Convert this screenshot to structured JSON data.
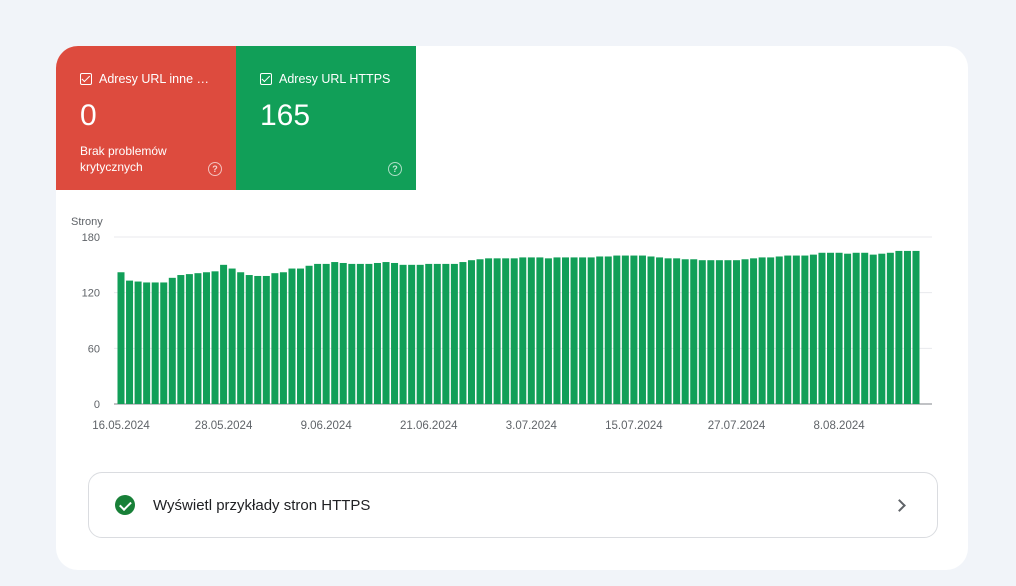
{
  "tiles": [
    {
      "label": "Adresy URL inne …",
      "value": "0",
      "subtitle": "Brak problemów krytycznych",
      "color": "#dd4b3e",
      "checked": true
    },
    {
      "label": "Adresy URL HTTPS",
      "value": "165",
      "color": "#119f58",
      "checked": true
    }
  ],
  "chart_data": {
    "type": "bar",
    "ylabel": "Strony",
    "ylim": [
      0,
      180
    ],
    "yticks": [
      0,
      60,
      120,
      180
    ],
    "xtick_labels": [
      "16.05.2024",
      "28.05.2024",
      "9.06.2024",
      "21.06.2024",
      "3.07.2024",
      "15.07.2024",
      "27.07.2024",
      "8.08.2024"
    ],
    "xtick_indices": [
      0,
      12,
      24,
      36,
      48,
      60,
      72,
      84
    ],
    "grid": true,
    "bar_color": "#119f58",
    "series": [
      {
        "values": [
          142,
          133,
          132,
          131,
          131,
          131,
          136,
          139,
          140,
          141,
          142,
          143,
          150,
          146,
          142,
          139,
          138,
          138,
          141,
          142,
          146,
          146,
          149,
          151,
          151,
          153,
          152,
          151,
          151,
          151,
          152,
          153,
          152,
          150,
          150,
          150,
          151,
          151,
          151,
          151,
          153,
          155,
          156,
          157,
          157,
          157,
          157,
          158,
          158,
          158,
          157,
          158,
          158,
          158,
          158,
          158,
          159,
          159,
          160,
          160,
          160,
          160,
          159,
          158,
          157,
          157,
          156,
          156,
          155,
          155,
          155,
          155,
          155,
          156,
          157,
          158,
          158,
          159,
          160,
          160,
          160,
          161,
          163,
          163,
          163,
          162,
          163,
          163,
          161,
          162,
          163,
          165,
          165,
          165
        ]
      }
    ]
  },
  "examples_link": {
    "label": "Wyświetl przykłady stron HTTPS",
    "icon": "check-circle-icon"
  }
}
